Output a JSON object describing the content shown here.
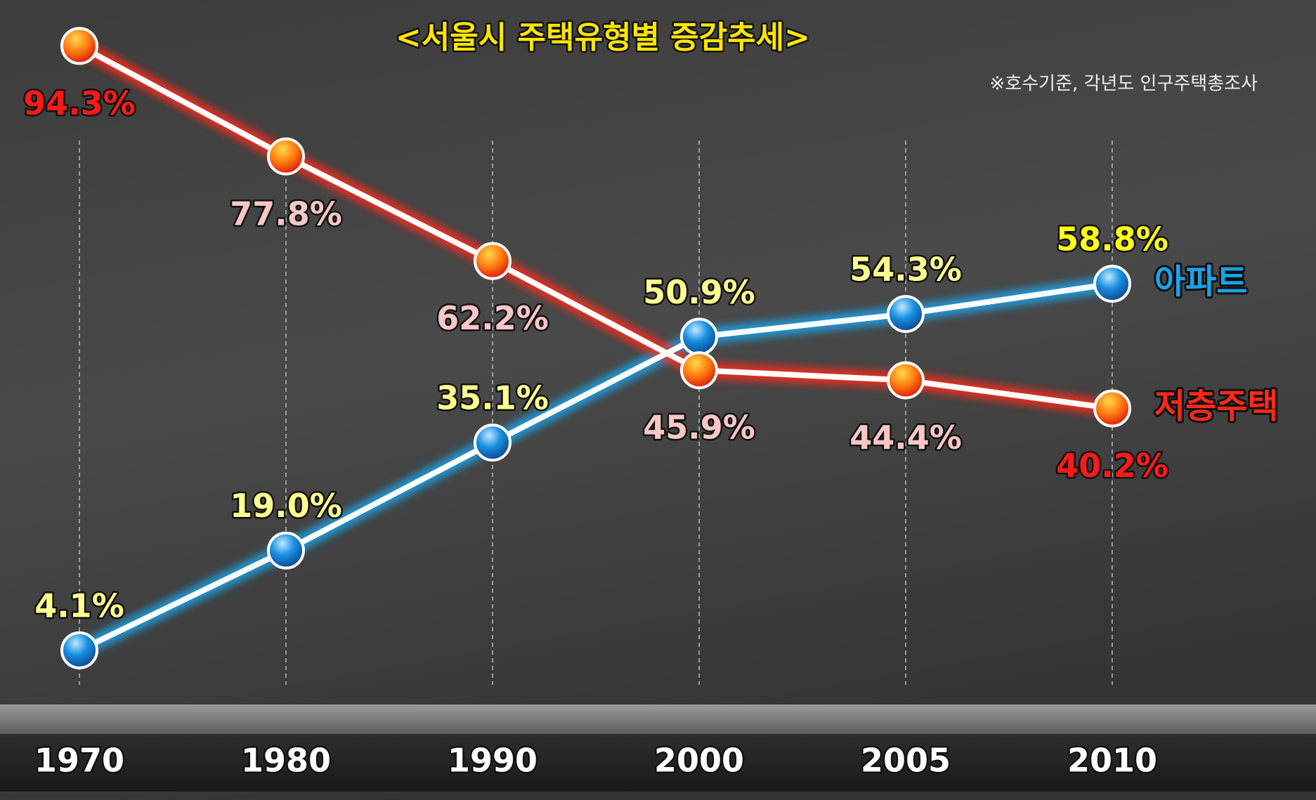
{
  "chart_data": {
    "type": "line",
    "title": "<서울시 주택유형별 증감추세>",
    "subtitle": "※호수기준, 각년도 인구주택총조사",
    "categories": [
      "1970",
      "1980",
      "1990",
      "2000",
      "2005",
      "2010"
    ],
    "series": [
      {
        "name": "아파트",
        "color": "#1aa3e8",
        "values": [
          4.1,
          19.0,
          35.1,
          50.9,
          54.3,
          58.8
        ],
        "value_labels": [
          "4.1%",
          "19.0%",
          "35.1%",
          "50.9%",
          "54.3%",
          "58.8%"
        ]
      },
      {
        "name": "저층주택",
        "color": "#ff2a1a",
        "values": [
          94.3,
          77.8,
          62.2,
          45.9,
          44.4,
          40.2
        ],
        "value_labels": [
          "94.3%",
          "77.8%",
          "62.2%",
          "45.9%",
          "44.4%",
          "40.2%"
        ]
      }
    ],
    "ylim": [
      0,
      100
    ],
    "grid": true
  }
}
